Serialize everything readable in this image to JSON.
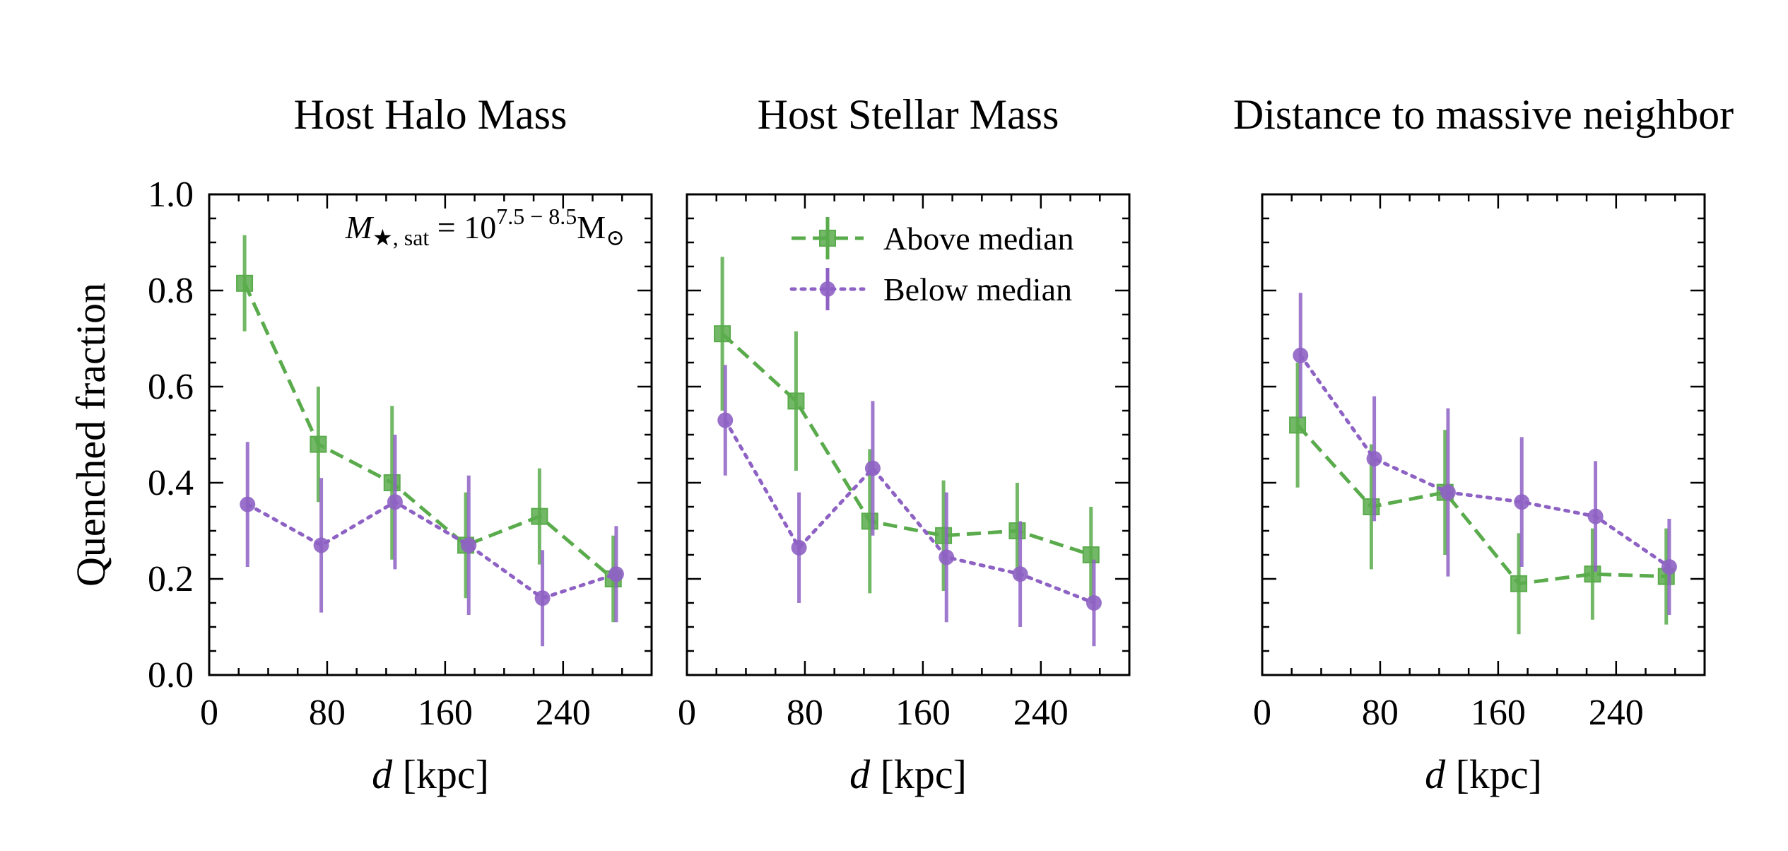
{
  "figure": {
    "annotation": {
      "M": "M",
      "sub": "★, sat",
      "eq": " = 10",
      "sup": "7.5 − 8.5",
      "unit": "M",
      "sun": "⊙"
    }
  },
  "chart_data": [
    {
      "type": "line",
      "title": "Host Halo Mass",
      "xlabel_italic": "d",
      "xlabel_rest": " [kpc]",
      "ylabel": "Quenched fraction",
      "xlim": [
        0,
        300
      ],
      "ylim": [
        0,
        1.0
      ],
      "xticks": [
        0,
        80,
        160,
        240
      ],
      "yticks": [
        0.0,
        0.2,
        0.4,
        0.6,
        0.8,
        1.0
      ],
      "ytick_labels": [
        "0.0",
        "0.2",
        "0.4",
        "0.6",
        "0.8",
        "1.0"
      ],
      "series": [
        {
          "key": "above",
          "color": "#5aab4c",
          "marker": "square",
          "dash": "dashed",
          "x": [
            24,
            74,
            124,
            174,
            224,
            274
          ],
          "y": [
            0.815,
            0.48,
            0.4,
            0.27,
            0.33,
            0.2
          ],
          "err": [
            0.1,
            0.12,
            0.16,
            0.11,
            0.1,
            0.09
          ]
        },
        {
          "key": "below",
          "color": "#8e62c4",
          "marker": "circle",
          "dash": "dotted",
          "x": [
            26,
            76,
            126,
            176,
            226,
            276
          ],
          "y": [
            0.355,
            0.27,
            0.36,
            0.27,
            0.16,
            0.21
          ],
          "err": [
            0.13,
            0.14,
            0.14,
            0.145,
            0.1,
            0.1
          ]
        }
      ]
    },
    {
      "type": "line",
      "title": "Host Stellar Mass",
      "xlabel_italic": "d",
      "xlabel_rest": " [kpc]",
      "xlim": [
        0,
        300
      ],
      "ylim": [
        0,
        1.0
      ],
      "xticks": [
        0,
        80,
        160,
        240
      ],
      "legend": {
        "position": "top-right",
        "entries": [
          {
            "key": "above",
            "label": "Above median"
          },
          {
            "key": "below",
            "label": "Below median"
          }
        ]
      },
      "series": [
        {
          "key": "above",
          "color": "#5aab4c",
          "marker": "square",
          "dash": "dashed",
          "x": [
            24,
            74,
            124,
            174,
            224,
            274
          ],
          "y": [
            0.71,
            0.57,
            0.32,
            0.29,
            0.3,
            0.25
          ],
          "err": [
            0.16,
            0.145,
            0.15,
            0.115,
            0.1,
            0.1
          ]
        },
        {
          "key": "below",
          "color": "#8e62c4",
          "marker": "circle",
          "dash": "dotted",
          "x": [
            26,
            76,
            126,
            176,
            226,
            276
          ],
          "y": [
            0.53,
            0.265,
            0.43,
            0.245,
            0.21,
            0.15
          ],
          "err": [
            0.115,
            0.115,
            0.14,
            0.135,
            0.11,
            0.09
          ]
        }
      ]
    },
    {
      "type": "line",
      "title": "Distance to massive neighbor",
      "xlabel_italic": "d",
      "xlabel_rest": " [kpc]",
      "xlim": [
        0,
        300
      ],
      "ylim": [
        0,
        1.0
      ],
      "xticks": [
        0,
        80,
        160,
        240
      ],
      "series": [
        {
          "key": "above",
          "color": "#5aab4c",
          "marker": "square",
          "dash": "dashed",
          "x": [
            24,
            74,
            124,
            174,
            224,
            274
          ],
          "y": [
            0.52,
            0.35,
            0.38,
            0.19,
            0.21,
            0.205
          ],
          "err": [
            0.13,
            0.13,
            0.13,
            0.105,
            0.095,
            0.1
          ]
        },
        {
          "key": "below",
          "color": "#8e62c4",
          "marker": "circle",
          "dash": "dotted",
          "x": [
            26,
            76,
            126,
            176,
            226,
            276
          ],
          "y": [
            0.665,
            0.45,
            0.38,
            0.36,
            0.33,
            0.225
          ],
          "err": [
            0.13,
            0.13,
            0.175,
            0.135,
            0.115,
            0.1
          ]
        }
      ]
    }
  ]
}
